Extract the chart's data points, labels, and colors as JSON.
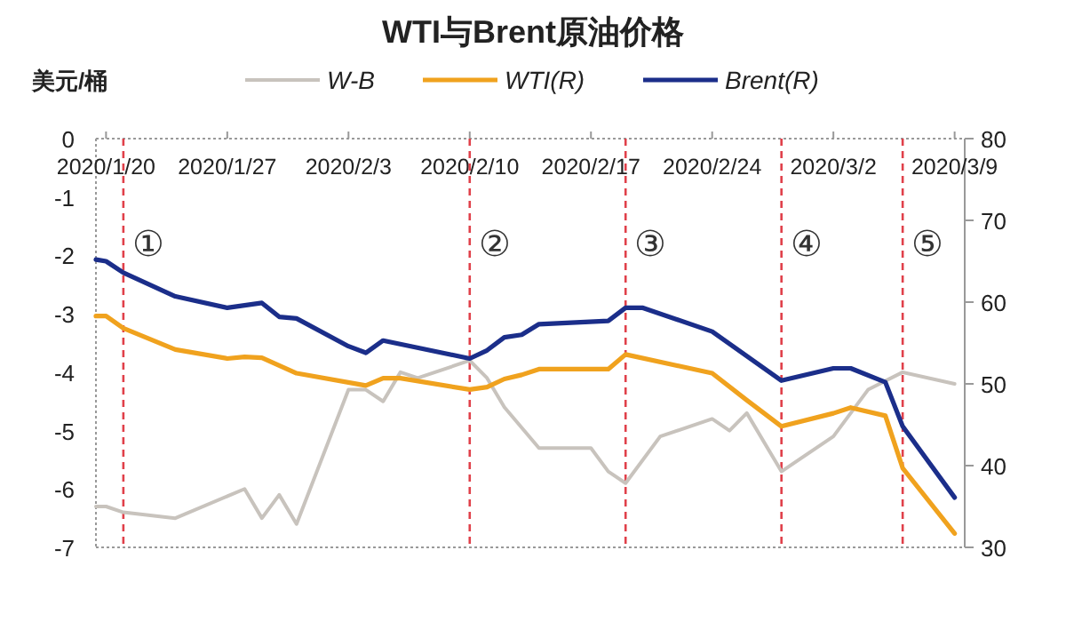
{
  "chart_data": {
    "type": "line",
    "title": "WTI与Brent原油价格",
    "ylabel": "美元/桶",
    "legend": "top",
    "xlim": [
      "2020-01-19T10:00",
      "2020-03-09T14:00"
    ],
    "xticks": [
      {
        "value": "2020-01-20",
        "label": "2020/1/20"
      },
      {
        "value": "2020-01-27",
        "label": "2020/1/27"
      },
      {
        "value": "2020-02-03",
        "label": "2020/2/3"
      },
      {
        "value": "2020-02-10",
        "label": "2020/2/10"
      },
      {
        "value": "2020-02-17",
        "label": "2020/2/17"
      },
      {
        "value": "2020-02-24",
        "label": "2020/2/24"
      },
      {
        "value": "2020-03-02",
        "label": "2020/3/2"
      },
      {
        "value": "2020-03-09",
        "label": "2020/3/9"
      }
    ],
    "ylim": [
      -7,
      0
    ],
    "yticks": [
      -7,
      -6,
      -5,
      -4,
      -3,
      -2,
      -1,
      0
    ],
    "y2lim": [
      30,
      80
    ],
    "y2ticks": [
      30,
      40,
      50,
      60,
      70,
      80
    ],
    "series": [
      {
        "name": "W-B",
        "color": "#c8c3bd",
        "x": [
          "2020-01-19T10:00",
          "2020-01-20",
          "2020-01-21",
          "2020-01-24",
          "2020-01-28",
          "2020-01-29",
          "2020-01-30",
          "2020-01-31",
          "2020-02-03",
          "2020-02-04",
          "2020-02-05",
          "2020-02-06",
          "2020-02-07",
          "2020-02-10",
          "2020-02-11",
          "2020-02-12",
          "2020-02-14",
          "2020-02-17",
          "2020-02-18",
          "2020-02-19",
          "2020-02-21",
          "2020-02-24",
          "2020-02-25",
          "2020-02-26",
          "2020-02-28",
          "2020-03-02",
          "2020-03-04",
          "2020-03-06",
          "2020-03-09"
        ],
        "values": [
          -6.3,
          -6.3,
          -6.4,
          -6.5,
          -6.0,
          -6.5,
          -6.1,
          -6.6,
          -4.3,
          -4.3,
          -4.5,
          -4.0,
          -4.1,
          -3.8,
          -4.1,
          -4.6,
          -5.3,
          -5.3,
          -5.7,
          -5.9,
          -5.1,
          -4.8,
          -5.0,
          -4.7,
          -5.7,
          -5.1,
          -4.3,
          -4.0,
          -4.2
        ]
      },
      {
        "name": "WTI(R)",
        "color": "#f0a21e",
        "axis": "y2",
        "x": [
          "2020-01-19T10:00",
          "2020-01-20",
          "2020-01-21",
          "2020-01-24",
          "2020-01-27",
          "2020-01-28",
          "2020-01-29",
          "2020-01-31",
          "2020-02-04",
          "2020-02-05",
          "2020-02-06",
          "2020-02-10",
          "2020-02-11",
          "2020-02-12",
          "2020-02-13",
          "2020-02-14",
          "2020-02-18",
          "2020-02-19",
          "2020-02-24",
          "2020-02-26",
          "2020-02-28",
          "2020-03-02",
          "2020-03-03",
          "2020-03-05",
          "2020-03-06",
          "2020-03-09"
        ],
        "values": [
          58.3,
          58.3,
          56.8,
          54.2,
          53.1,
          53.3,
          53.2,
          51.3,
          49.8,
          50.7,
          50.7,
          49.3,
          49.6,
          50.6,
          51.1,
          51.8,
          51.8,
          53.6,
          51.3,
          48.0,
          44.8,
          46.4,
          47.1,
          46.1,
          39.7,
          31.7
        ]
      },
      {
        "name": "Brent(R)",
        "color": "#1b2e8a",
        "axis": "y2",
        "x": [
          "2020-01-19T10:00",
          "2020-01-20",
          "2020-01-21",
          "2020-01-24",
          "2020-01-27",
          "2020-01-29",
          "2020-01-30",
          "2020-01-31",
          "2020-02-03",
          "2020-02-04",
          "2020-02-05",
          "2020-02-10",
          "2020-02-11",
          "2020-02-12",
          "2020-02-13",
          "2020-02-14",
          "2020-02-18",
          "2020-02-19",
          "2020-02-20",
          "2020-02-24",
          "2020-02-28",
          "2020-03-02",
          "2020-03-03",
          "2020-03-05",
          "2020-03-06",
          "2020-03-09"
        ],
        "values": [
          65.2,
          65.0,
          63.6,
          60.7,
          59.3,
          59.9,
          58.2,
          58.0,
          54.6,
          53.8,
          55.3,
          53.1,
          54.1,
          55.7,
          56.0,
          57.3,
          57.7,
          59.3,
          59.3,
          56.4,
          50.4,
          51.9,
          51.9,
          50.2,
          44.8,
          36.1
        ]
      }
    ],
    "ref_lines": [
      {
        "axis": "x",
        "value": "2020-01-21",
        "color": "#e0404a",
        "line_style": "dashed"
      },
      {
        "axis": "x",
        "value": "2020-02-10",
        "color": "#e0404a",
        "line_style": "dashed"
      },
      {
        "axis": "x",
        "value": "2020-02-19",
        "color": "#e0404a",
        "line_style": "dashed"
      },
      {
        "axis": "x",
        "value": "2020-02-28",
        "color": "#e0404a",
        "line_style": "dashed"
      },
      {
        "axis": "x",
        "value": "2020-03-06",
        "color": "#e0404a",
        "line_style": "dashed"
      }
    ],
    "annotations": [
      "①",
      "②",
      "③",
      "④",
      "⑤"
    ]
  }
}
